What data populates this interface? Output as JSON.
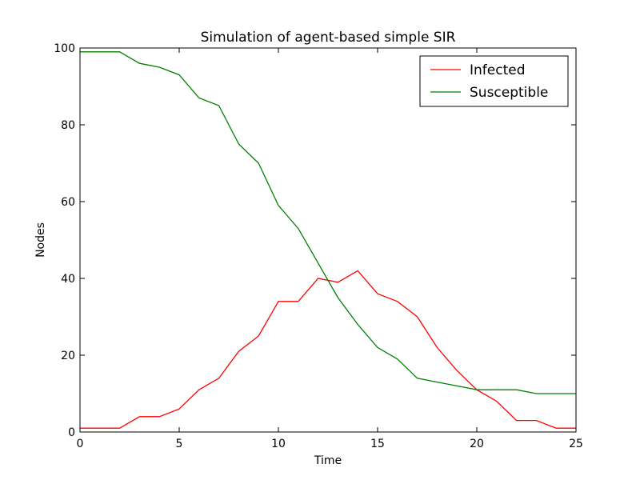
{
  "chart_data": {
    "type": "line",
    "title": "Simulation of agent-based simple SIR",
    "xlabel": "Time",
    "ylabel": "Nodes",
    "xlim": [
      0,
      25
    ],
    "ylim": [
      0,
      100
    ],
    "xticks": [
      0,
      5,
      10,
      15,
      20,
      25
    ],
    "yticks": [
      0,
      20,
      40,
      60,
      80,
      100
    ],
    "grid": false,
    "legend_position": "top-right",
    "x": [
      0,
      1,
      2,
      3,
      4,
      5,
      6,
      7,
      8,
      9,
      10,
      11,
      12,
      13,
      14,
      15,
      16,
      17,
      18,
      19,
      20,
      21,
      22,
      23,
      24,
      25
    ],
    "series": [
      {
        "name": "Infected",
        "color": "#ff0000",
        "values": [
          1,
          1,
          1,
          4,
          4,
          6,
          11,
          14,
          21,
          25,
          34,
          34,
          40,
          39,
          42,
          36,
          34,
          30,
          22,
          16,
          11,
          8,
          3,
          3,
          1,
          1
        ]
      },
      {
        "name": "Susceptible",
        "color": "#008000",
        "values": [
          99,
          99,
          99,
          96,
          95,
          93,
          87,
          85,
          75,
          70,
          59,
          53,
          44,
          35,
          28,
          22,
          19,
          14,
          13,
          12,
          11,
          11,
          11,
          10,
          10,
          10
        ]
      }
    ]
  }
}
